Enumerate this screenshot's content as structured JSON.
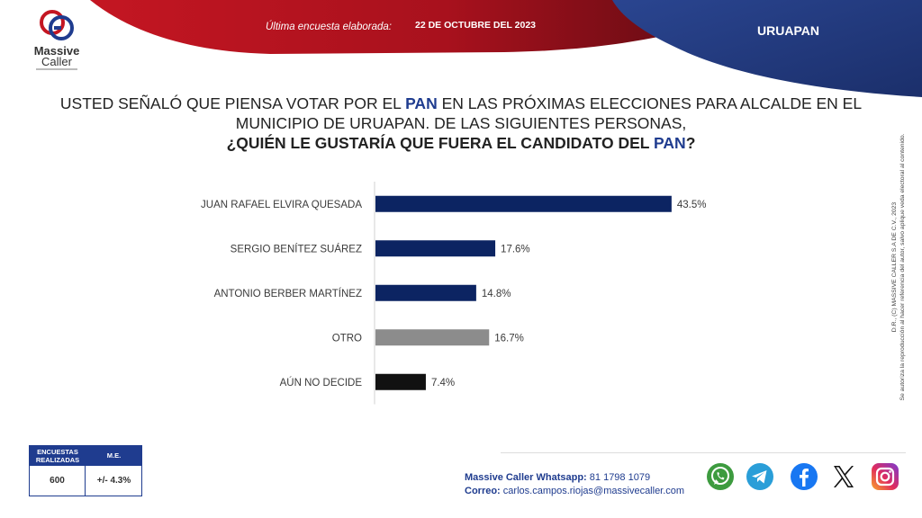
{
  "brand": {
    "name_line1": "Massive",
    "name_line2": "Caller"
  },
  "header": {
    "survey_label": "Última encuesta elaborada:",
    "survey_date": "22 DE OCTUBRE DEL 2023",
    "city": "URUAPAN"
  },
  "question": {
    "line1_a": "USTED SEÑALÓ QUE PIENSA VOTAR POR EL ",
    "line1_party": "PAN",
    "line1_b": " EN LAS PRÓXIMAS ELECCIONES PARA ALCALDE EN EL",
    "line2": "MUNICIPIO DE URUAPAN.  DE LAS SIGUIENTES PERSONAS,",
    "line3_a": "¿QUIÉN LE GUSTARÍA QUE FUERA EL CANDIDATO DEL ",
    "line3_party": "PAN",
    "line3_b": "?"
  },
  "chart_data": {
    "type": "bar",
    "orientation": "horizontal",
    "categories": [
      "JUAN RAFAEL ELVIRA QUESADA",
      "SERGIO BENÍTEZ SUÁREZ",
      "ANTONIO BERBER MARTÍNEZ",
      "OTRO",
      "AÚN NO DECIDE"
    ],
    "values": [
      43.5,
      17.6,
      14.8,
      16.7,
      7.4
    ],
    "labels": [
      "43.5%",
      "17.6%",
      "14.8%",
      "16.7%",
      "7.4%"
    ],
    "colors": [
      "#0c2462",
      "#0c2462",
      "#0c2462",
      "#8c8c8c",
      "#111111"
    ],
    "xlim": [
      0,
      50
    ],
    "grid": false
  },
  "legal": {
    "line1": "D.R., (C) MASSIVE CALLER S.A DE C.V., 2023",
    "line2": "Se autoriza la reproducción al hacer referencia del autor, salvo aplique veda electoral al contenido."
  },
  "stats": {
    "header_a": "ENCUESTAS REALIZADAS",
    "header_b": "M.E.",
    "value_a": "600",
    "value_b": "+/- 4.3%"
  },
  "contact": {
    "whatsapp_label": "Massive Caller Whatsapp:",
    "whatsapp_number": "81 1798 1079",
    "email_label": "Correo:",
    "email": "carlos.campos.riojas@massivecaller.com"
  },
  "social": [
    "whatsapp-icon",
    "telegram-icon",
    "facebook-icon",
    "x-icon",
    "instagram-icon"
  ],
  "colors": {
    "navy": "#1f3c8f",
    "red": "#b51420",
    "bar_primary": "#0c2462",
    "bar_other": "#8c8c8c",
    "bar_undecided": "#111111"
  }
}
